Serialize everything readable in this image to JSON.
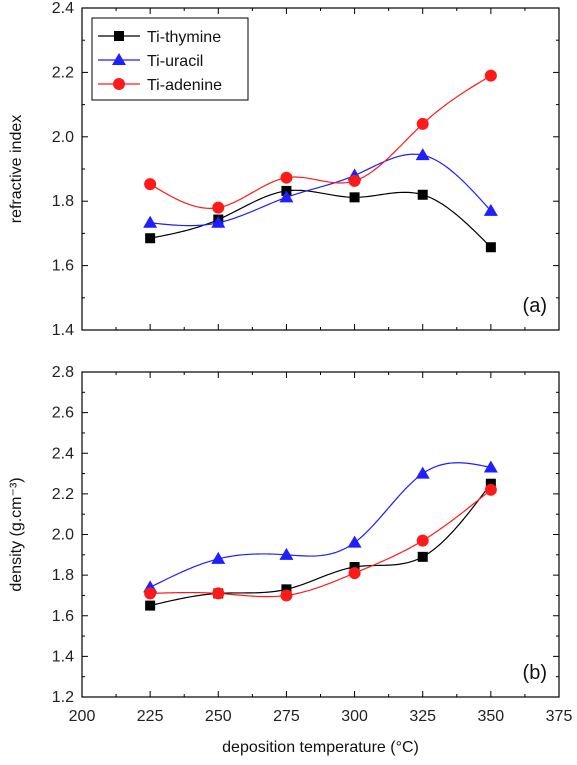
{
  "chart_data": [
    {
      "type": "scatter",
      "panel_label": "(a)",
      "xlabel": "",
      "ylabel": "refractive index",
      "xlim": [
        200,
        375
      ],
      "ylim": [
        1.4,
        2.4
      ],
      "yticks": [
        1.4,
        1.6,
        1.8,
        2.0,
        2.2,
        2.4
      ],
      "ytick_labels": [
        "1.4",
        "1.6",
        "1.8",
        "2.0",
        "2.2",
        "2.4"
      ],
      "legend_position": "top-left",
      "series": [
        {
          "name": "Ti-thymine",
          "color": "#000000",
          "marker": "square",
          "x": [
            225,
            250,
            275,
            300,
            325,
            350
          ],
          "y": [
            1.685,
            1.743,
            1.832,
            1.812,
            1.82,
            1.657
          ]
        },
        {
          "name": "Ti-uracil",
          "color": "#1f1fff",
          "marker": "triangle",
          "x": [
            225,
            250,
            275,
            300,
            325,
            350
          ],
          "y": [
            1.733,
            1.733,
            1.812,
            1.88,
            1.943,
            1.77
          ]
        },
        {
          "name": "Ti-adenine",
          "color": "#ff1a1a",
          "marker": "circle",
          "x": [
            225,
            250,
            275,
            300,
            325,
            350
          ],
          "y": [
            1.853,
            1.78,
            1.873,
            1.863,
            2.04,
            2.19
          ]
        }
      ]
    },
    {
      "type": "scatter",
      "panel_label": "(b)",
      "xlabel": "deposition temperature (°C)",
      "ylabel": "density (g.cm⁻³)",
      "xlim": [
        200,
        375
      ],
      "xticks": [
        200,
        225,
        250,
        275,
        300,
        325,
        350,
        375
      ],
      "xtick_labels": [
        "200",
        "225",
        "250",
        "275",
        "300",
        "325",
        "350",
        "375"
      ],
      "ylim": [
        1.2,
        2.8
      ],
      "yticks": [
        1.2,
        1.4,
        1.6,
        1.8,
        2.0,
        2.2,
        2.4,
        2.6,
        2.8
      ],
      "ytick_labels": [
        "1.2",
        "1.4",
        "1.6",
        "1.8",
        "2.0",
        "2.2",
        "2.4",
        "2.6",
        "2.8"
      ],
      "series": [
        {
          "name": "Ti-thymine",
          "color": "#000000",
          "marker": "square",
          "x": [
            225,
            250,
            275,
            300,
            325,
            350
          ],
          "y": [
            1.65,
            1.71,
            1.73,
            1.84,
            1.89,
            2.25
          ]
        },
        {
          "name": "Ti-uracil",
          "color": "#1f1fff",
          "marker": "triangle",
          "x": [
            225,
            250,
            275,
            300,
            325,
            350
          ],
          "y": [
            1.74,
            1.88,
            1.9,
            1.96,
            2.3,
            2.33
          ]
        },
        {
          "name": "Ti-adenine",
          "color": "#ff1a1a",
          "marker": "circle",
          "x": [
            225,
            250,
            275,
            300,
            325,
            350
          ],
          "y": [
            1.71,
            1.71,
            1.7,
            1.81,
            1.97,
            2.22
          ]
        }
      ]
    }
  ]
}
